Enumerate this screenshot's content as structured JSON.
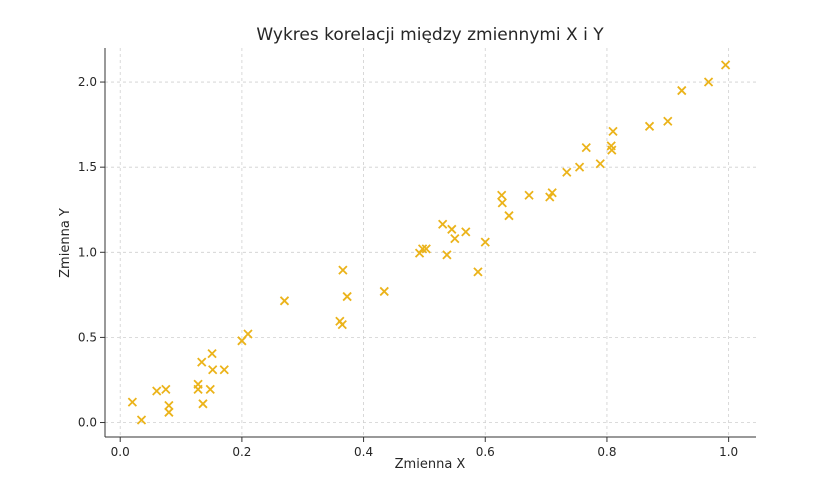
{
  "chart_data": {
    "type": "scatter",
    "title": "Wykres korelacji między zmiennymi X i Y",
    "xlabel": "Zmienna X",
    "ylabel": "Zmienna Y",
    "xlim": [
      -0.025,
      1.045
    ],
    "ylim": [
      -0.085,
      2.2
    ],
    "xticks": [
      0.0,
      0.2,
      0.4,
      0.6,
      0.8,
      1.0
    ],
    "xtick_labels": [
      "0.0",
      "0.2",
      "0.4",
      "0.6",
      "0.8",
      "1.0"
    ],
    "yticks": [
      0.0,
      0.5,
      1.0,
      1.5,
      2.0
    ],
    "ytick_labels": [
      "0.0",
      "0.5",
      "1.0",
      "1.5",
      "2.0"
    ],
    "grid": true,
    "marker": "x",
    "color": "#EBB31A",
    "points": [
      {
        "x": 0.02,
        "y": 0.12
      },
      {
        "x": 0.035,
        "y": 0.015
      },
      {
        "x": 0.06,
        "y": 0.185
      },
      {
        "x": 0.075,
        "y": 0.195
      },
      {
        "x": 0.08,
        "y": 0.1
      },
      {
        "x": 0.08,
        "y": 0.06
      },
      {
        "x": 0.128,
        "y": 0.225
      },
      {
        "x": 0.128,
        "y": 0.195
      },
      {
        "x": 0.134,
        "y": 0.355
      },
      {
        "x": 0.136,
        "y": 0.11
      },
      {
        "x": 0.148,
        "y": 0.195
      },
      {
        "x": 0.151,
        "y": 0.405
      },
      {
        "x": 0.152,
        "y": 0.31
      },
      {
        "x": 0.171,
        "y": 0.31
      },
      {
        "x": 0.2,
        "y": 0.48
      },
      {
        "x": 0.21,
        "y": 0.52
      },
      {
        "x": 0.27,
        "y": 0.715
      },
      {
        "x": 0.361,
        "y": 0.595
      },
      {
        "x": 0.365,
        "y": 0.575
      },
      {
        "x": 0.366,
        "y": 0.895
      },
      {
        "x": 0.373,
        "y": 0.74
      },
      {
        "x": 0.434,
        "y": 0.77
      },
      {
        "x": 0.492,
        "y": 0.995
      },
      {
        "x": 0.497,
        "y": 1.02
      },
      {
        "x": 0.503,
        "y": 1.02
      },
      {
        "x": 0.53,
        "y": 1.165
      },
      {
        "x": 0.537,
        "y": 0.985
      },
      {
        "x": 0.545,
        "y": 1.135
      },
      {
        "x": 0.55,
        "y": 1.08
      },
      {
        "x": 0.568,
        "y": 1.12
      },
      {
        "x": 0.588,
        "y": 0.885
      },
      {
        "x": 0.6,
        "y": 1.06
      },
      {
        "x": 0.627,
        "y": 1.335
      },
      {
        "x": 0.628,
        "y": 1.29
      },
      {
        "x": 0.639,
        "y": 1.215
      },
      {
        "x": 0.672,
        "y": 1.335
      },
      {
        "x": 0.706,
        "y": 1.325
      },
      {
        "x": 0.71,
        "y": 1.35
      },
      {
        "x": 0.734,
        "y": 1.47
      },
      {
        "x": 0.755,
        "y": 1.5
      },
      {
        "x": 0.766,
        "y": 1.615
      },
      {
        "x": 0.789,
        "y": 1.52
      },
      {
        "x": 0.807,
        "y": 1.625
      },
      {
        "x": 0.808,
        "y": 1.6
      },
      {
        "x": 0.81,
        "y": 1.71
      },
      {
        "x": 0.87,
        "y": 1.74
      },
      {
        "x": 0.9,
        "y": 1.77
      },
      {
        "x": 0.923,
        "y": 1.95
      },
      {
        "x": 0.967,
        "y": 2.0
      },
      {
        "x": 0.995,
        "y": 2.1
      }
    ]
  }
}
